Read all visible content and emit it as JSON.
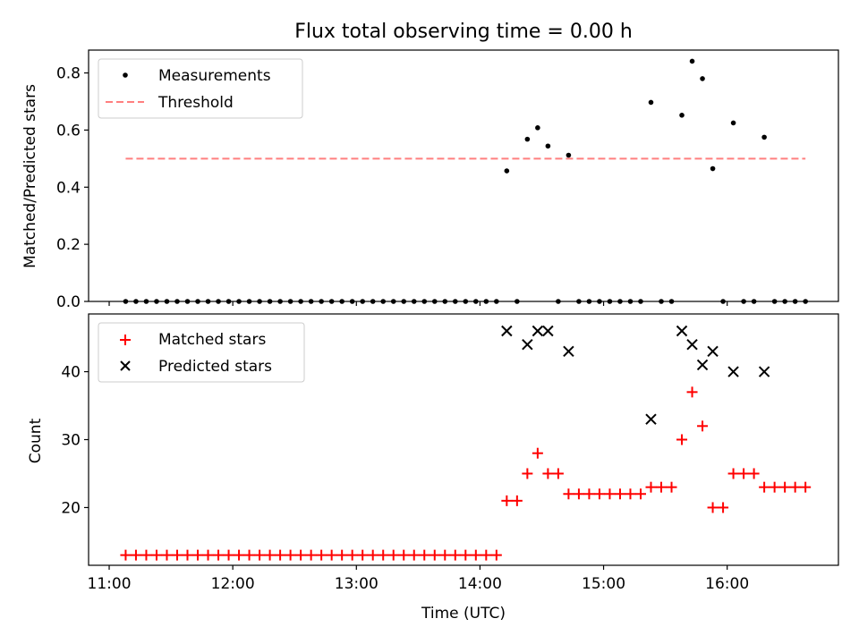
{
  "figure": {
    "title": "Flux total observing time = 0.00 h"
  },
  "colors": {
    "measurements": "#000000",
    "threshold": "#ff7f7f",
    "matched": "#ff0000",
    "predicted": "#000000"
  },
  "chart_data": [
    {
      "type": "scatter",
      "xlabel": "",
      "ylabel": "Matched/Predicted stars",
      "ylim": [
        0,
        0.88
      ],
      "yticks": [
        "0.0",
        "0.2",
        "0.4",
        "0.6",
        "0.8"
      ],
      "legend": {
        "placement": "upper-left",
        "entries": [
          "Measurements",
          "Threshold"
        ]
      },
      "threshold": {
        "name": "Threshold",
        "x_start": "11:08",
        "x_end": "16:38",
        "y": 0.5
      },
      "series": [
        {
          "name": "Measurements",
          "marker": "dot",
          "points": [
            [
              "11:08",
              0
            ],
            [
              "11:13",
              0
            ],
            [
              "11:18",
              0
            ],
            [
              "11:23",
              0
            ],
            [
              "11:28",
              0
            ],
            [
              "11:33",
              0
            ],
            [
              "11:38",
              0
            ],
            [
              "11:43",
              0
            ],
            [
              "11:48",
              0
            ],
            [
              "11:53",
              0
            ],
            [
              "11:58",
              0
            ],
            [
              "12:03",
              0
            ],
            [
              "12:08",
              0
            ],
            [
              "12:13",
              0
            ],
            [
              "12:18",
              0
            ],
            [
              "12:23",
              0
            ],
            [
              "12:28",
              0
            ],
            [
              "12:33",
              0
            ],
            [
              "12:38",
              0
            ],
            [
              "12:43",
              0
            ],
            [
              "12:48",
              0
            ],
            [
              "12:53",
              0
            ],
            [
              "12:58",
              0
            ],
            [
              "13:03",
              0
            ],
            [
              "13:08",
              0
            ],
            [
              "13:13",
              0
            ],
            [
              "13:18",
              0
            ],
            [
              "13:23",
              0
            ],
            [
              "13:28",
              0
            ],
            [
              "13:33",
              0
            ],
            [
              "13:38",
              0
            ],
            [
              "13:43",
              0
            ],
            [
              "13:48",
              0
            ],
            [
              "13:53",
              0
            ],
            [
              "13:58",
              0
            ],
            [
              "14:03",
              0
            ],
            [
              "14:08",
              0
            ],
            [
              "14:13",
              0.457
            ],
            [
              "14:18",
              0
            ],
            [
              "14:23",
              0.568
            ],
            [
              "14:28",
              0.608
            ],
            [
              "14:33",
              0.544
            ],
            [
              "14:38",
              0
            ],
            [
              "14:43",
              0.512
            ],
            [
              "14:48",
              0
            ],
            [
              "14:53",
              0
            ],
            [
              "14:58",
              0
            ],
            [
              "15:03",
              0
            ],
            [
              "15:08",
              0
            ],
            [
              "15:13",
              0
            ],
            [
              "15:18",
              0
            ],
            [
              "15:23",
              0.697
            ],
            [
              "15:28",
              0
            ],
            [
              "15:33",
              0
            ],
            [
              "15:38",
              0.652
            ],
            [
              "15:43",
              0.841
            ],
            [
              "15:48",
              0.78
            ],
            [
              "15:53",
              0.465
            ],
            [
              "15:58",
              0
            ],
            [
              "16:03",
              0.625
            ],
            [
              "16:08",
              0
            ],
            [
              "16:13",
              0
            ],
            [
              "16:18",
              0.575
            ],
            [
              "16:23",
              0
            ],
            [
              "16:28",
              0
            ],
            [
              "16:33",
              0
            ],
            [
              "16:38",
              0
            ]
          ]
        }
      ]
    },
    {
      "type": "scatter",
      "xlabel": "Time (UTC)",
      "ylabel": "Count",
      "ylim": [
        11.5,
        48.5
      ],
      "yticks": [
        "20",
        "30",
        "40"
      ],
      "xticks": [
        "11:00",
        "12:00",
        "13:00",
        "14:00",
        "15:00",
        "16:00"
      ],
      "legend": {
        "placement": "upper-left",
        "entries": [
          "Matched stars",
          "Predicted stars"
        ]
      },
      "series": [
        {
          "name": "Matched stars",
          "marker": "plus",
          "points": [
            [
              "11:08",
              13
            ],
            [
              "11:13",
              13
            ],
            [
              "11:18",
              13
            ],
            [
              "11:23",
              13
            ],
            [
              "11:28",
              13
            ],
            [
              "11:33",
              13
            ],
            [
              "11:38",
              13
            ],
            [
              "11:43",
              13
            ],
            [
              "11:48",
              13
            ],
            [
              "11:53",
              13
            ],
            [
              "11:58",
              13
            ],
            [
              "12:03",
              13
            ],
            [
              "12:08",
              13
            ],
            [
              "12:13",
              13
            ],
            [
              "12:18",
              13
            ],
            [
              "12:23",
              13
            ],
            [
              "12:28",
              13
            ],
            [
              "12:33",
              13
            ],
            [
              "12:38",
              13
            ],
            [
              "12:43",
              13
            ],
            [
              "12:48",
              13
            ],
            [
              "12:53",
              13
            ],
            [
              "12:58",
              13
            ],
            [
              "13:03",
              13
            ],
            [
              "13:08",
              13
            ],
            [
              "13:13",
              13
            ],
            [
              "13:18",
              13
            ],
            [
              "13:23",
              13
            ],
            [
              "13:28",
              13
            ],
            [
              "13:33",
              13
            ],
            [
              "13:38",
              13
            ],
            [
              "13:43",
              13
            ],
            [
              "13:48",
              13
            ],
            [
              "13:53",
              13
            ],
            [
              "13:58",
              13
            ],
            [
              "14:03",
              13
            ],
            [
              "14:08",
              13
            ],
            [
              "14:13",
              21
            ],
            [
              "14:18",
              21
            ],
            [
              "14:23",
              25
            ],
            [
              "14:28",
              28
            ],
            [
              "14:33",
              25
            ],
            [
              "14:38",
              25
            ],
            [
              "14:43",
              22
            ],
            [
              "14:48",
              22
            ],
            [
              "14:53",
              22
            ],
            [
              "14:58",
              22
            ],
            [
              "15:03",
              22
            ],
            [
              "15:08",
              22
            ],
            [
              "15:13",
              22
            ],
            [
              "15:18",
              22
            ],
            [
              "15:23",
              23
            ],
            [
              "15:28",
              23
            ],
            [
              "15:33",
              23
            ],
            [
              "15:38",
              30
            ],
            [
              "15:43",
              37
            ],
            [
              "15:48",
              32
            ],
            [
              "15:53",
              20
            ],
            [
              "15:58",
              20
            ],
            [
              "16:03",
              25
            ],
            [
              "16:08",
              25
            ],
            [
              "16:13",
              25
            ],
            [
              "16:18",
              23
            ],
            [
              "16:23",
              23
            ],
            [
              "16:28",
              23
            ],
            [
              "16:33",
              23
            ],
            [
              "16:38",
              23
            ]
          ]
        },
        {
          "name": "Predicted stars",
          "marker": "x",
          "points": [
            [
              "14:13",
              46
            ],
            [
              "14:23",
              44
            ],
            [
              "14:28",
              46
            ],
            [
              "14:33",
              46
            ],
            [
              "14:43",
              43
            ],
            [
              "15:23",
              33
            ],
            [
              "15:38",
              46
            ],
            [
              "15:43",
              44
            ],
            [
              "15:48",
              41
            ],
            [
              "15:53",
              43
            ],
            [
              "16:03",
              40
            ],
            [
              "16:18",
              40
            ]
          ]
        }
      ]
    }
  ]
}
